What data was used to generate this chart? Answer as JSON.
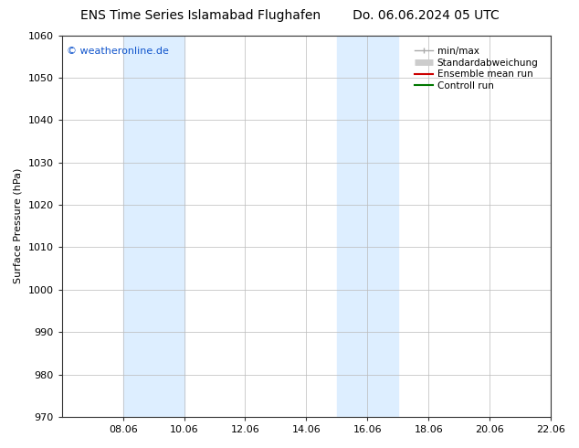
{
  "title_left": "ENS Time Series Islamabad Flughafen",
  "title_right": "Do. 06.06.2024 05 UTC",
  "ylabel": "Surface Pressure (hPa)",
  "ylim": [
    970,
    1060
  ],
  "yticks": [
    970,
    980,
    990,
    1000,
    1010,
    1020,
    1030,
    1040,
    1050,
    1060
  ],
  "xlim": [
    0,
    16
  ],
  "xtick_labels": [
    "08.06",
    "10.06",
    "12.06",
    "14.06",
    "16.06",
    "18.06",
    "20.06",
    "22.06"
  ],
  "xtick_positions": [
    2,
    4,
    6,
    8,
    10,
    12,
    14,
    16
  ],
  "shaded_bands": [
    {
      "x_start": 2.0,
      "x_end": 3.0,
      "color": "#ddeeff"
    },
    {
      "x_start": 3.0,
      "x_end": 4.0,
      "color": "#ddeeff"
    },
    {
      "x_start": 9.0,
      "x_end": 10.0,
      "color": "#ddeeff"
    },
    {
      "x_start": 10.0,
      "x_end": 11.0,
      "color": "#ddeeff"
    }
  ],
  "watermark_text": "© weatheronline.de",
  "watermark_color": "#1155cc",
  "legend_entries": [
    {
      "label": "min/max",
      "color": "#aaaaaa",
      "lw": 1.0,
      "style": "line_with_cap"
    },
    {
      "label": "Standardabweichung",
      "color": "#cccccc",
      "lw": 5,
      "style": "thick"
    },
    {
      "label": "Ensemble mean run",
      "color": "#cc0000",
      "lw": 1.5,
      "style": "line"
    },
    {
      "label": "Controll run",
      "color": "#007700",
      "lw": 1.5,
      "style": "line"
    }
  ],
  "bg_color": "#ffffff",
  "plot_bg_color": "#ffffff",
  "grid_color": "#bbbbbb",
  "title_fontsize": 10,
  "axis_fontsize": 8,
  "tick_fontsize": 8,
  "legend_fontsize": 7.5
}
